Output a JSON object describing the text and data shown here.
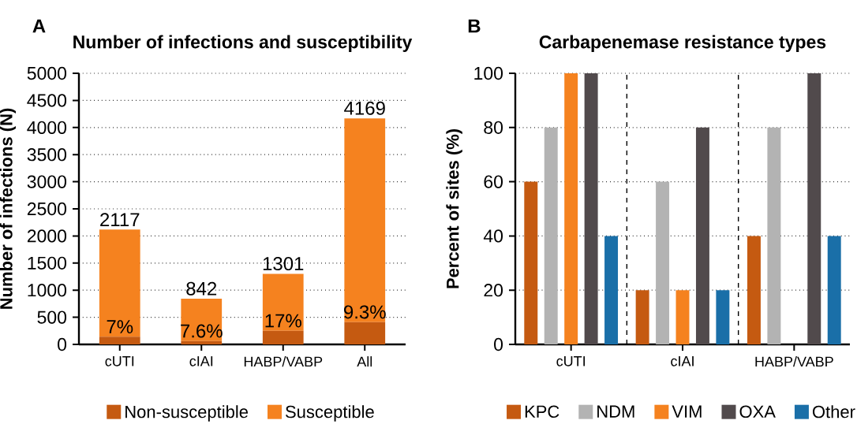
{
  "chart_data": [
    {
      "type": "bar",
      "title": "Number of infections and susceptibility",
      "ylabel": "Number of infections (N)",
      "annotations": [
        "A",
        {
          "text": "7%",
          "x": "cUTI",
          "y": 140
        },
        {
          "text": "7.6%",
          "x": "cIAI",
          "y": 60
        },
        {
          "text": "17%",
          "x": "HABP/VABP",
          "y": 250
        },
        {
          "text": "9.3%",
          "x": "All",
          "y": 410
        }
      ],
      "categories": [
        "cUTI",
        "cIAI",
        "HABP/VABP",
        "All"
      ],
      "stacked": true,
      "series": [
        {
          "name": "Non-susceptible",
          "color": "#c55a11",
          "values": [
            140,
            60,
            250,
            410
          ]
        },
        {
          "name": "Susceptible",
          "color": "#f5821f",
          "values": [
            1977,
            782,
            1051,
            3759
          ]
        }
      ],
      "totals": [
        "2117",
        "842",
        "1301",
        "4169"
      ],
      "ylim": [
        0,
        5000
      ],
      "yticks": [
        0,
        500,
        1000,
        1500,
        2000,
        2500,
        3000,
        3500,
        4000,
        4500,
        5000
      ],
      "grid": "y",
      "legend": "bottom"
    },
    {
      "type": "bar",
      "title": "Carbapenemase resistance types",
      "ylabel": "Percent of sites (%)",
      "annotations": [
        "B"
      ],
      "categories": [
        "cUTI",
        "cIAI",
        "HABP/VABP"
      ],
      "series": [
        {
          "name": "KPC",
          "color": "#c55a11",
          "values": [
            60,
            20,
            40
          ]
        },
        {
          "name": "NDM",
          "color": "#b3b3b3",
          "values": [
            80,
            60,
            80
          ]
        },
        {
          "name": "VIM",
          "color": "#f5821f",
          "values": [
            100,
            20,
            0
          ]
        },
        {
          "name": "OXA",
          "color": "#514a4c",
          "values": [
            100,
            80,
            100
          ]
        },
        {
          "name": "Other",
          "color": "#1a6fa8",
          "values": [
            40,
            20,
            40
          ]
        }
      ],
      "ylim": [
        0,
        100
      ],
      "yticks": [
        0,
        20,
        40,
        60,
        80,
        100
      ],
      "grid": "y",
      "legend": "bottom"
    }
  ]
}
